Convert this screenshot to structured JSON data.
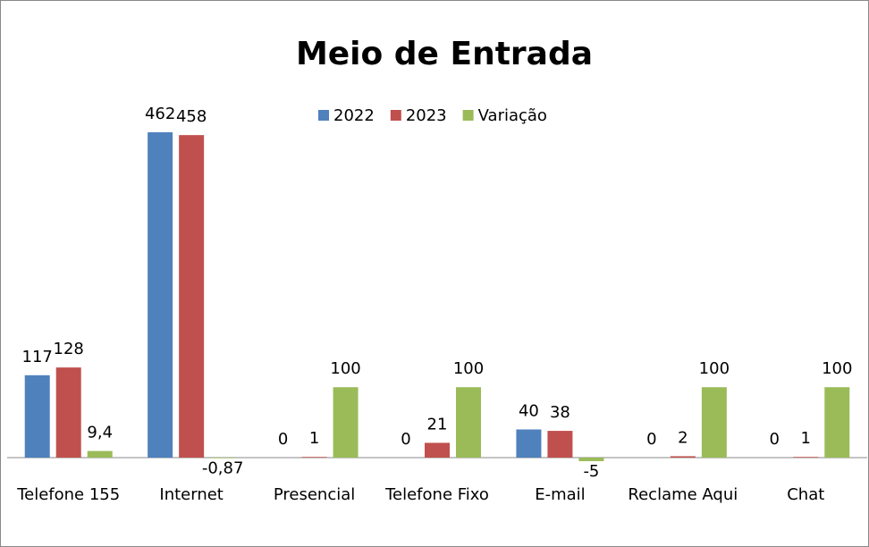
{
  "chart_data": {
    "type": "bar",
    "title": "Meio de Entrada",
    "categories": [
      "Telefone 155",
      "Internet",
      "Presencial",
      "Telefone Fixo",
      "E-mail",
      "Reclame Aqui",
      "Chat"
    ],
    "series": [
      {
        "name": "2022",
        "color": "#4f81bd",
        "values": [
          117,
          462,
          0,
          0,
          40,
          0,
          0
        ]
      },
      {
        "name": "2023",
        "color": "#c0504d",
        "values": [
          128,
          458,
          1,
          21,
          38,
          2,
          1
        ]
      },
      {
        "name": "Variação",
        "color": "#9bbb59",
        "values": [
          9.4,
          -0.87,
          100,
          100,
          -5,
          100,
          100
        ],
        "value_labels": [
          "9,4",
          "-0,87",
          "100",
          "100",
          "-5",
          "100",
          "100"
        ]
      }
    ],
    "legend": "top"
  }
}
